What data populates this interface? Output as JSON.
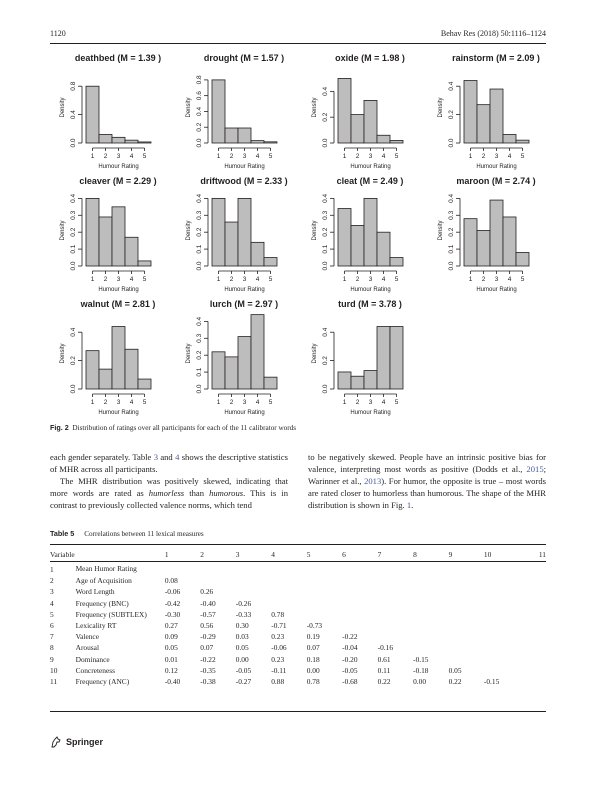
{
  "header": {
    "page_number": "1120",
    "journal": "Behav Res (2018) 50:1116–1124"
  },
  "figure": {
    "panels": [
      {
        "word": "deathbed",
        "mean": "1.39",
        "yticks": [
          "0.0",
          "0.4",
          "0.8"
        ],
        "ymax": 1.0,
        "values": [
          0.8,
          0.12,
          0.08,
          0.04,
          0.015
        ]
      },
      {
        "word": "drought",
        "mean": "1.57",
        "yticks": [
          "0.0",
          "0.2",
          "0.4",
          "0.6",
          "0.8"
        ],
        "ymax": 0.9,
        "values": [
          0.8,
          0.19,
          0.19,
          0.03,
          0.015
        ]
      },
      {
        "word": "oxide",
        "mean": "1.98",
        "yticks": [
          "0.0",
          "0.2",
          "0.4"
        ],
        "ymax": 0.55,
        "values": [
          0.5,
          0.22,
          0.33,
          0.06,
          0.02
        ]
      },
      {
        "word": "rainstorm",
        "mean": "2.09",
        "yticks": [
          "0.0",
          "0.2",
          "0.4"
        ],
        "ymax": 0.5,
        "values": [
          0.44,
          0.27,
          0.38,
          0.06,
          0.02
        ]
      },
      {
        "word": "cleaver",
        "mean": "2.29",
        "yticks": [
          "0.0",
          "0.1",
          "0.2",
          "0.3",
          "0.4"
        ],
        "ymax": 0.42,
        "values": [
          0.4,
          0.29,
          0.35,
          0.17,
          0.03
        ]
      },
      {
        "word": "driftwood",
        "mean": "2.33",
        "yticks": [
          "0.0",
          "0.1",
          "0.2",
          "0.3",
          "0.4"
        ],
        "ymax": 0.42,
        "values": [
          0.4,
          0.26,
          0.4,
          0.14,
          0.05
        ]
      },
      {
        "word": "cleat",
        "mean": "2.49",
        "yticks": [
          "0.0",
          "0.1",
          "0.2",
          "0.3",
          "0.4"
        ],
        "ymax": 0.42,
        "values": [
          0.34,
          0.24,
          0.4,
          0.2,
          0.05
        ]
      },
      {
        "word": "maroon",
        "mean": "2.74",
        "yticks": [
          "0.0",
          "0.1",
          "0.2",
          "0.3",
          "0.4"
        ],
        "ymax": 0.42,
        "values": [
          0.28,
          0.21,
          0.39,
          0.29,
          0.08
        ]
      },
      {
        "word": "walnut",
        "mean": "2.81",
        "yticks": [
          "0.0",
          "0.2",
          "0.4"
        ],
        "ymax": 0.5,
        "values": [
          0.27,
          0.14,
          0.44,
          0.28,
          0.07
        ]
      },
      {
        "word": "lurch",
        "mean": "2.97",
        "yticks": [
          "0.0",
          "0.1",
          "0.2",
          "0.3",
          "0.4"
        ],
        "ymax": 0.42,
        "values": [
          0.22,
          0.19,
          0.31,
          0.44,
          0.07
        ]
      },
      {
        "word": "turd",
        "mean": "3.78",
        "yticks": [
          "0.0",
          "0.2",
          "0.4"
        ],
        "ymax": 0.5,
        "values": [
          0.12,
          0.09,
          0.13,
          0.44,
          0.44
        ]
      }
    ],
    "m_label": "M =",
    "ylabel": "Density",
    "xlabel": "Humour Rating",
    "xticks": [
      "1",
      "2",
      "3",
      "4",
      "5"
    ]
  },
  "caption": {
    "label": "Fig. 2",
    "text": "Distribution of ratings over all participants for each of the 11 calibrator words"
  },
  "body": {
    "left_p1_a": "each gender separately. Table ",
    "left_p1_t3": "3",
    "left_p1_b": " and ",
    "left_p1_t4": "4",
    "left_p1_c": " shows the descriptive statistics of MHR across all participants.",
    "left_p2_a": "The MHR distribution was positively skewed, indicating that more words are rated as ",
    "left_p2_em1": "humorless",
    "left_p2_b": " than ",
    "left_p2_em2": "humorous",
    "left_p2_c": ". This is in contrast to previously collected valence norms, which tend",
    "right_a": "to be negatively skewed. People have an intrinsic positive bias for valence, interpreting most words as positive (Dodds et al., ",
    "right_y1": "2015",
    "right_b": "; Warinner et al., ",
    "right_y2": "2013",
    "right_c": "). For humor, the opposite is true – most words are rated closer to humorless than humorous. The shape of the MHR distribution is shown in Fig. ",
    "right_f": "1",
    "right_d": "."
  },
  "table": {
    "label": "Table 5",
    "title": "Correlations between 11 lexical measures",
    "header": [
      "Variable",
      "",
      "1",
      "2",
      "3",
      "4",
      "5",
      "6",
      "7",
      "8",
      "9",
      "10",
      "11"
    ],
    "rows": [
      {
        "n": "1",
        "v": "Mean Humor Rating",
        "c": []
      },
      {
        "n": "2",
        "v": "Age of Acquisition",
        "c": [
          "0.08"
        ]
      },
      {
        "n": "3",
        "v": "Word Length",
        "c": [
          "-0.06",
          "0.26"
        ]
      },
      {
        "n": "4",
        "v": "Frequency (BNC)",
        "c": [
          "-0.42",
          "-0.40",
          "-0.26"
        ]
      },
      {
        "n": "5",
        "v": "Frequency (SUBTLEX)",
        "c": [
          "-0.30",
          "-0.57",
          "-0.33",
          "0.78"
        ]
      },
      {
        "n": "6",
        "v": "Lexicality RT",
        "c": [
          "0.27",
          "0.56",
          "0.30",
          "-0.71",
          "-0.73"
        ]
      },
      {
        "n": "7",
        "v": "Valence",
        "c": [
          "0.09",
          "-0.29",
          "0.03",
          "0.23",
          "0.19",
          "-0.22"
        ]
      },
      {
        "n": "8",
        "v": "Arousal",
        "c": [
          "0.05",
          "0.07",
          "0.05",
          "-0.06",
          "0.07",
          "-0.04",
          "-0.16"
        ]
      },
      {
        "n": "9",
        "v": "Dominance",
        "c": [
          "0.01",
          "-0.22",
          "0.00",
          "0.23",
          "0.18",
          "-0.20",
          "0.61",
          "-0.15"
        ]
      },
      {
        "n": "10",
        "v": "Concreteness",
        "c": [
          "0.12",
          "-0.35",
          "-0.05",
          "-0.11",
          "0.00",
          "-0.05",
          "0.11",
          "-0.18",
          "0.05"
        ]
      },
      {
        "n": "11",
        "v": "Frequency (ANC)",
        "c": [
          "-0.40",
          "-0.38",
          "-0.27",
          "0.88",
          "0.78",
          "-0.68",
          "0.22",
          "0.00",
          "0.22",
          "-0.15"
        ]
      }
    ]
  },
  "footer": {
    "publisher": "Springer"
  },
  "colors": {
    "bar_fill": "#bdbdbd",
    "bar_stroke": "#231f20",
    "link": "#4a5a9a"
  },
  "chart_data": {
    "type": "bar",
    "title": "",
    "xlabel": "Humour Rating",
    "ylabel": "Density",
    "categories": [
      "1",
      "2",
      "3",
      "4",
      "5"
    ],
    "series": [
      {
        "name": "deathbed",
        "values": [
          0.8,
          0.12,
          0.08,
          0.04,
          0.015
        ]
      },
      {
        "name": "drought",
        "values": [
          0.8,
          0.19,
          0.19,
          0.03,
          0.015
        ]
      },
      {
        "name": "oxide",
        "values": [
          0.5,
          0.22,
          0.33,
          0.06,
          0.02
        ]
      },
      {
        "name": "rainstorm",
        "values": [
          0.44,
          0.27,
          0.38,
          0.06,
          0.02
        ]
      },
      {
        "name": "cleaver",
        "values": [
          0.4,
          0.29,
          0.35,
          0.17,
          0.03
        ]
      },
      {
        "name": "driftwood",
        "values": [
          0.4,
          0.26,
          0.4,
          0.14,
          0.05
        ]
      },
      {
        "name": "cleat",
        "values": [
          0.34,
          0.24,
          0.4,
          0.2,
          0.05
        ]
      },
      {
        "name": "maroon",
        "values": [
          0.28,
          0.21,
          0.39,
          0.29,
          0.08
        ]
      },
      {
        "name": "walnut",
        "values": [
          0.27,
          0.14,
          0.44,
          0.28,
          0.07
        ]
      },
      {
        "name": "lurch",
        "values": [
          0.22,
          0.19,
          0.31,
          0.44,
          0.07
        ]
      },
      {
        "name": "turd",
        "values": [
          0.12,
          0.09,
          0.13,
          0.44,
          0.44
        ]
      }
    ]
  }
}
